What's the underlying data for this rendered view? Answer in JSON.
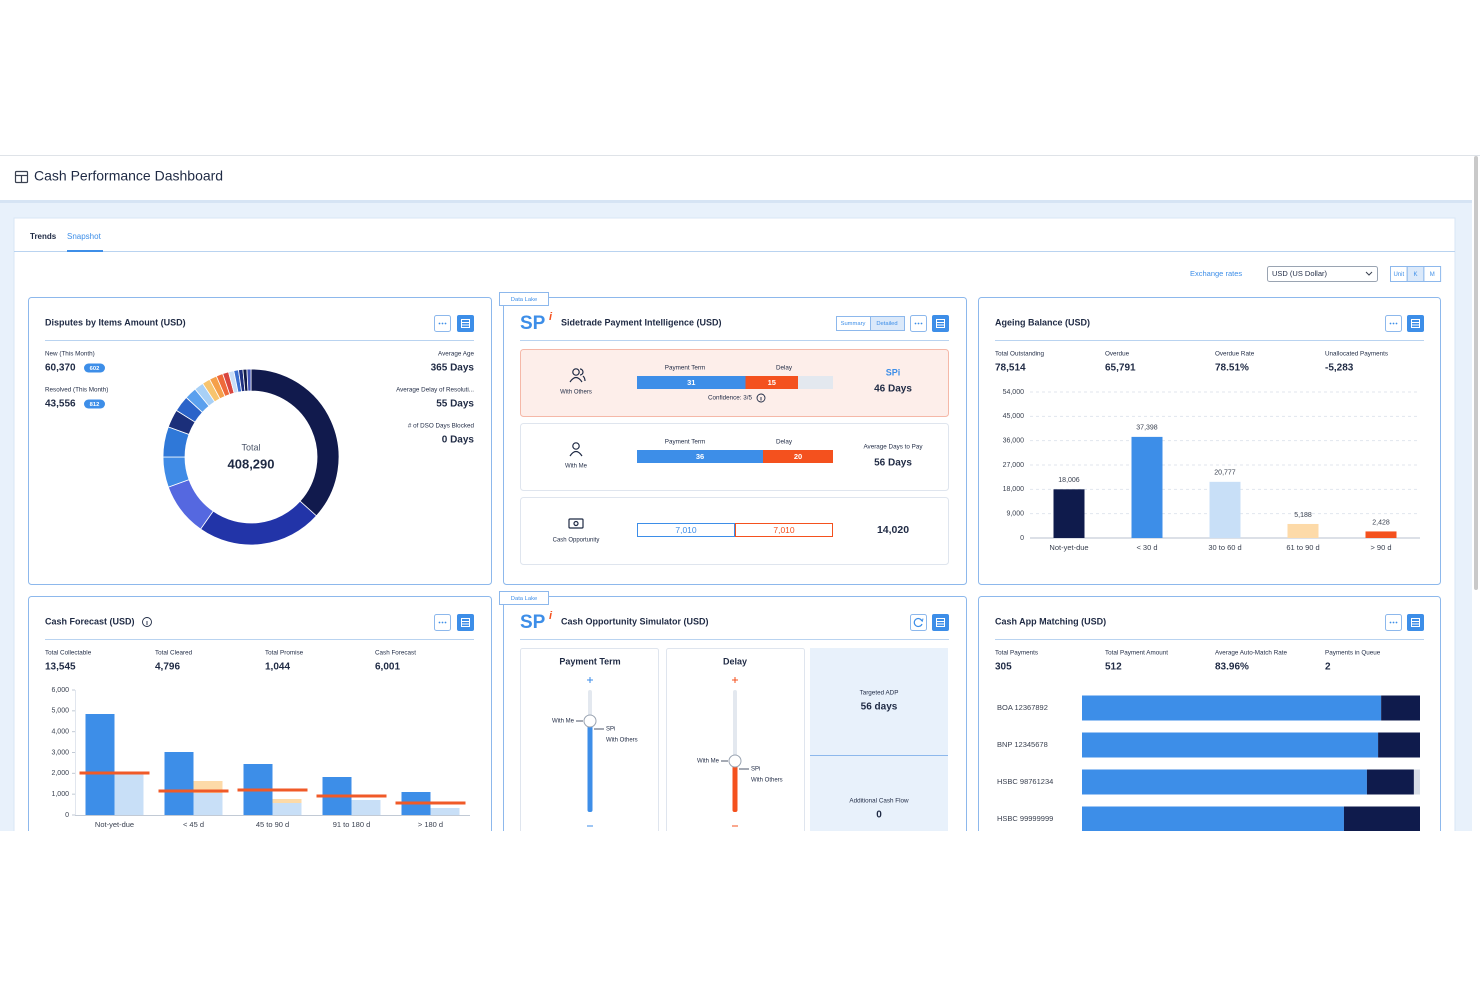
{
  "header": {
    "title": "Cash Performance Dashboard"
  },
  "tabs": [
    "Trends",
    "Snapshot"
  ],
  "toolbar": {
    "exchange_rates": "Exchange rates",
    "currency": "USD (US Dollar)",
    "units": [
      "Unit",
      "K",
      "M"
    ]
  },
  "data_lake_tags": [
    "Data Lake",
    "Data Lake"
  ],
  "disputes": {
    "title": "Disputes by Items Amount (USD)",
    "stats": [
      {
        "label": "New (This Month)",
        "value": "60,370",
        "badge": "602"
      },
      {
        "label": "Resolved (This Month)",
        "value": "43,556",
        "badge": "812"
      }
    ],
    "metrics": [
      {
        "label": "Average Age",
        "value": "365 Days"
      },
      {
        "label": "Average Delay of Resoluti...",
        "value": "55 Days"
      },
      {
        "label": "# of DSO Days Blocked",
        "value": "0 Days"
      }
    ],
    "donut": {
      "type": "donut",
      "center_label": "Total",
      "total": "408,290",
      "values": [
        149700,
        94100,
        39700,
        22700,
        22700,
        13600,
        12000,
        9000,
        7000,
        6000,
        5500,
        5000,
        4500,
        4000,
        3500,
        3290,
        3000,
        3000
      ],
      "colors": [
        "#111a4d",
        "#2234a8",
        "#5568e0",
        "#3f8be6",
        "#2f78d8",
        "#1b2f7a",
        "#2b63c9",
        "#5aa0ee",
        "#a8d0f6",
        "#f7c46e",
        "#f5a04a",
        "#ef6a3a",
        "#d9463f",
        "#c9def7",
        "#3a6fd0",
        "#1f2f80",
        "#101a4a",
        "#4455b8"
      ]
    }
  },
  "payment_intelligence": {
    "logo": "SP",
    "logo_mark": "i",
    "title": "Sidetrade Payment Intelligence (USD)",
    "views": [
      "Summary",
      "Detailed"
    ],
    "colors": [
      "#3d8ee8",
      "#f4511e"
    ],
    "rows": [
      {
        "label": "With Others",
        "term_label": "Payment Term",
        "delay_label": "Delay",
        "values": [
          31,
          15
        ],
        "note": "Confidence: 3/5",
        "result_label": "SPi",
        "result": "46 Days"
      },
      {
        "label": "With Me",
        "term_label": "Payment Term",
        "delay_label": "Delay",
        "values": [
          36,
          20
        ],
        "result_label": "Average Days to Pay",
        "result": "56 Days"
      },
      {
        "label": "Cash Opportunity",
        "values": [
          7010,
          7010
        ],
        "value_labels": [
          "7,010",
          "7,010"
        ],
        "result": "14,020"
      }
    ]
  },
  "ageing": {
    "title": "Ageing Balance (USD)",
    "stats": [
      {
        "label": "Total Outstanding",
        "value": "78,514"
      },
      {
        "label": "Overdue",
        "value": "65,791"
      },
      {
        "label": "Overdue Rate",
        "value": "78.51%"
      },
      {
        "label": "Unallocated Payments",
        "value": "-5,283"
      }
    ],
    "chart": {
      "type": "bar",
      "categories": [
        "Not-yet-due",
        "< 30 d",
        "30 to 60 d",
        "61 to 90 d",
        "> 90 d"
      ],
      "values": [
        18006,
        37398,
        20777,
        5188,
        2428
      ],
      "value_labels": [
        "18,006",
        "37,398",
        "20,777",
        "5,188",
        "2,428"
      ],
      "colors": [
        "#0f1b4c",
        "#3d8ee8",
        "#c8dff7",
        "#fddaa8",
        "#f4511e"
      ],
      "ylim": [
        0,
        54000
      ],
      "yticks": [
        0,
        {
          "value": 9000,
          "label": "9,000"
        },
        {
          "value": 18000,
          "label": "18,000"
        },
        {
          "value": 27000,
          "label": "27,000"
        },
        {
          "value": 36000,
          "label": "36,000"
        },
        {
          "value": 45000,
          "label": "45,000"
        },
        {
          "value": 54000,
          "label": "54,000"
        }
      ],
      "grid": true
    }
  },
  "cash_forecast": {
    "title": "Cash Forecast (USD)",
    "stats": [
      {
        "label": "Total Collectable",
        "value": "13,545"
      },
      {
        "label": "Total Cleared",
        "value": "4,796"
      },
      {
        "label": "Total Promise",
        "value": "1,044"
      },
      {
        "label": "Cash Forecast",
        "value": "6,001"
      }
    ],
    "chart": {
      "type": "bar",
      "categories": [
        "Not-yet-due",
        "< 45 d",
        "45 to 90 d",
        "91 to 180 d",
        "> 180 d"
      ],
      "series": [
        {
          "color": "#fddaa8",
          "values": [
            null,
            1632,
            768,
            null,
            288
          ]
        },
        {
          "color": "#c8dff7",
          "values": [
            2016,
            1056,
            576,
            720,
            336
          ]
        },
        {
          "color": "#3d8ee8",
          "values": [
            4848,
            3024,
            2448,
            1824,
            1104
          ]
        }
      ],
      "markers": {
        "color": "#f05a28",
        "values": [
          2016,
          1152,
          1200,
          912,
          576
        ]
      },
      "ylim": [
        0,
        6000
      ],
      "yticks": [
        0,
        {
          "value": 1000,
          "label": "1,000"
        },
        {
          "value": 2000,
          "label": "2,000"
        },
        {
          "value": 3000,
          "label": "3,000"
        },
        {
          "value": 4000,
          "label": "4,000"
        },
        {
          "value": 5000,
          "label": "5,000"
        },
        {
          "value": 6000,
          "label": "6,000"
        }
      ],
      "grid": false
    }
  },
  "simulator": {
    "logo": "SP",
    "logo_mark": "i",
    "title": "Cash Opportunity Simulator (USD)",
    "sliders": [
      {
        "title": "Payment Term",
        "handle_label": "With Me",
        "marker_label": "SPi",
        "marker_sub": "With Others",
        "color": "#3d8ee8"
      },
      {
        "title": "Delay",
        "handle_label": "With Me",
        "marker_label": "SPi",
        "marker_sub": "With Others",
        "color": "#f4511e"
      }
    ],
    "targets": [
      {
        "label": "Targeted ADP",
        "value": "56 days"
      },
      {
        "label": "Additional Cash Flow",
        "value": "0"
      }
    ]
  },
  "cash_app": {
    "title": "Cash App Matching (USD)",
    "stats": [
      {
        "label": "Total Payments",
        "value": "305"
      },
      {
        "label": "Total Payment Amount",
        "value": "512"
      },
      {
        "label": "Average Auto-Match Rate",
        "value": "83.96%"
      },
      {
        "label": "Payments in Queue",
        "value": "2"
      }
    ],
    "chart": {
      "type": "stacked-bar",
      "xlim": [
        0,
        100
      ],
      "colors": [
        "#3d8ee8",
        "#0f1b4c",
        "#d7dde6"
      ],
      "rows": [
        {
          "label": "BOA 12367892",
          "values": [
            88.5,
            11.5
          ]
        },
        {
          "label": "BNP 12345678",
          "values": [
            87.6,
            12.4
          ]
        },
        {
          "label": "HSBC 98761234",
          "values": [
            84.3,
            13.9,
            1.8
          ]
        },
        {
          "label": "HSBC 99999999",
          "values": [
            77.5,
            22.5
          ]
        }
      ]
    }
  }
}
